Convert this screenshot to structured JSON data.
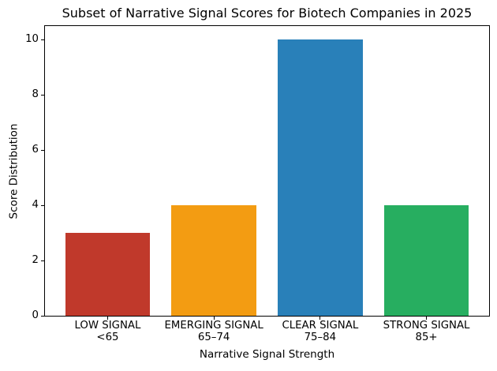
{
  "chart_data": {
    "type": "bar",
    "title": "Subset of Narrative Signal Scores for Biotech Companies in 2025",
    "xlabel": "Narrative Signal Strength",
    "ylabel": "Score Distribution",
    "categories": [
      {
        "line1": "LOW SIGNAL",
        "line2": "<65"
      },
      {
        "line1": "EMERGING SIGNAL",
        "line2": "65–74"
      },
      {
        "line1": "CLEAR SIGNAL",
        "line2": "75–84"
      },
      {
        "line1": "STRONG SIGNAL",
        "line2": "85+"
      }
    ],
    "values": [
      3,
      4,
      10,
      4
    ],
    "bar_colors": [
      "#c0392b",
      "#f39c12",
      "#2980b9",
      "#27ae60"
    ],
    "yticks": [
      0,
      2,
      4,
      6,
      8,
      10
    ],
    "ylim": [
      0,
      10.5
    ],
    "xlim": [
      -0.59,
      3.59
    ],
    "bar_width_units": 0.8,
    "grid": false,
    "legend": null,
    "axis_color": "#000000",
    "background_color": "#ffffff"
  }
}
